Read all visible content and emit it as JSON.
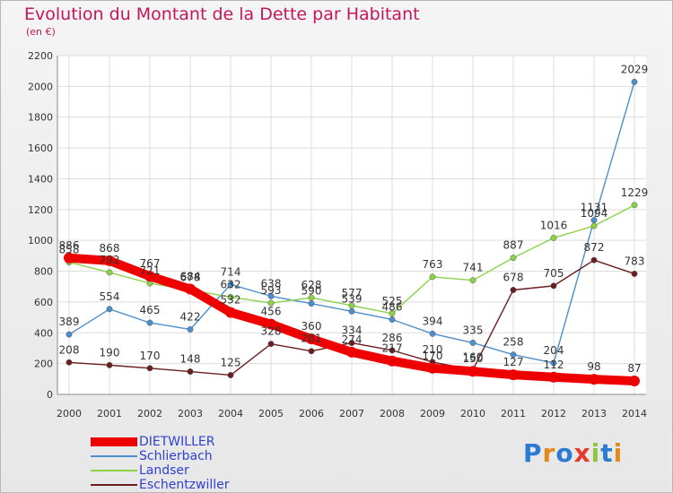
{
  "title": "Evolution du Montant de la Dette par Habitant",
  "unit_label": "(en €)",
  "logo_text": "Proxiti",
  "chart_data": {
    "type": "line",
    "x": [
      "2000",
      "2001",
      "2002",
      "2003",
      "2004",
      "2005",
      "2006",
      "2007",
      "2008",
      "2009",
      "2010",
      "2011",
      "2012",
      "2013",
      "2014"
    ],
    "ylim": [
      0,
      2200
    ],
    "yticks": [
      0,
      200,
      400,
      600,
      800,
      1000,
      1200,
      1400,
      1600,
      1800,
      2000,
      2200
    ],
    "grid": true,
    "legend_position": "bottom-left",
    "series": [
      {
        "name": "DIETWILLER",
        "color": "#ee0000",
        "values": [
          886,
          868,
          767,
          684,
          532,
          456,
          360,
          274,
          217,
          170,
          150,
          127,
          112,
          98,
          87
        ]
      },
      {
        "name": "Schlierbach",
        "color": "#4d8fcc",
        "values": [
          389,
          554,
          465,
          422,
          714,
          638,
          590,
          539,
          486,
          394,
          335,
          258,
          204,
          1131,
          2029
        ]
      },
      {
        "name": "Landser",
        "color": "#8cd14a",
        "values": [
          858,
          792,
          721,
          678,
          632,
          593,
          628,
          577,
          525,
          763,
          741,
          887,
          1016,
          1094,
          1229
        ]
      },
      {
        "name": "Eschentzwiller",
        "color": "#6b1e1e",
        "values": [
          208,
          190,
          170,
          148,
          125,
          328,
          281,
          334,
          286,
          210,
          160,
          678,
          705,
          872,
          783
        ]
      }
    ]
  }
}
